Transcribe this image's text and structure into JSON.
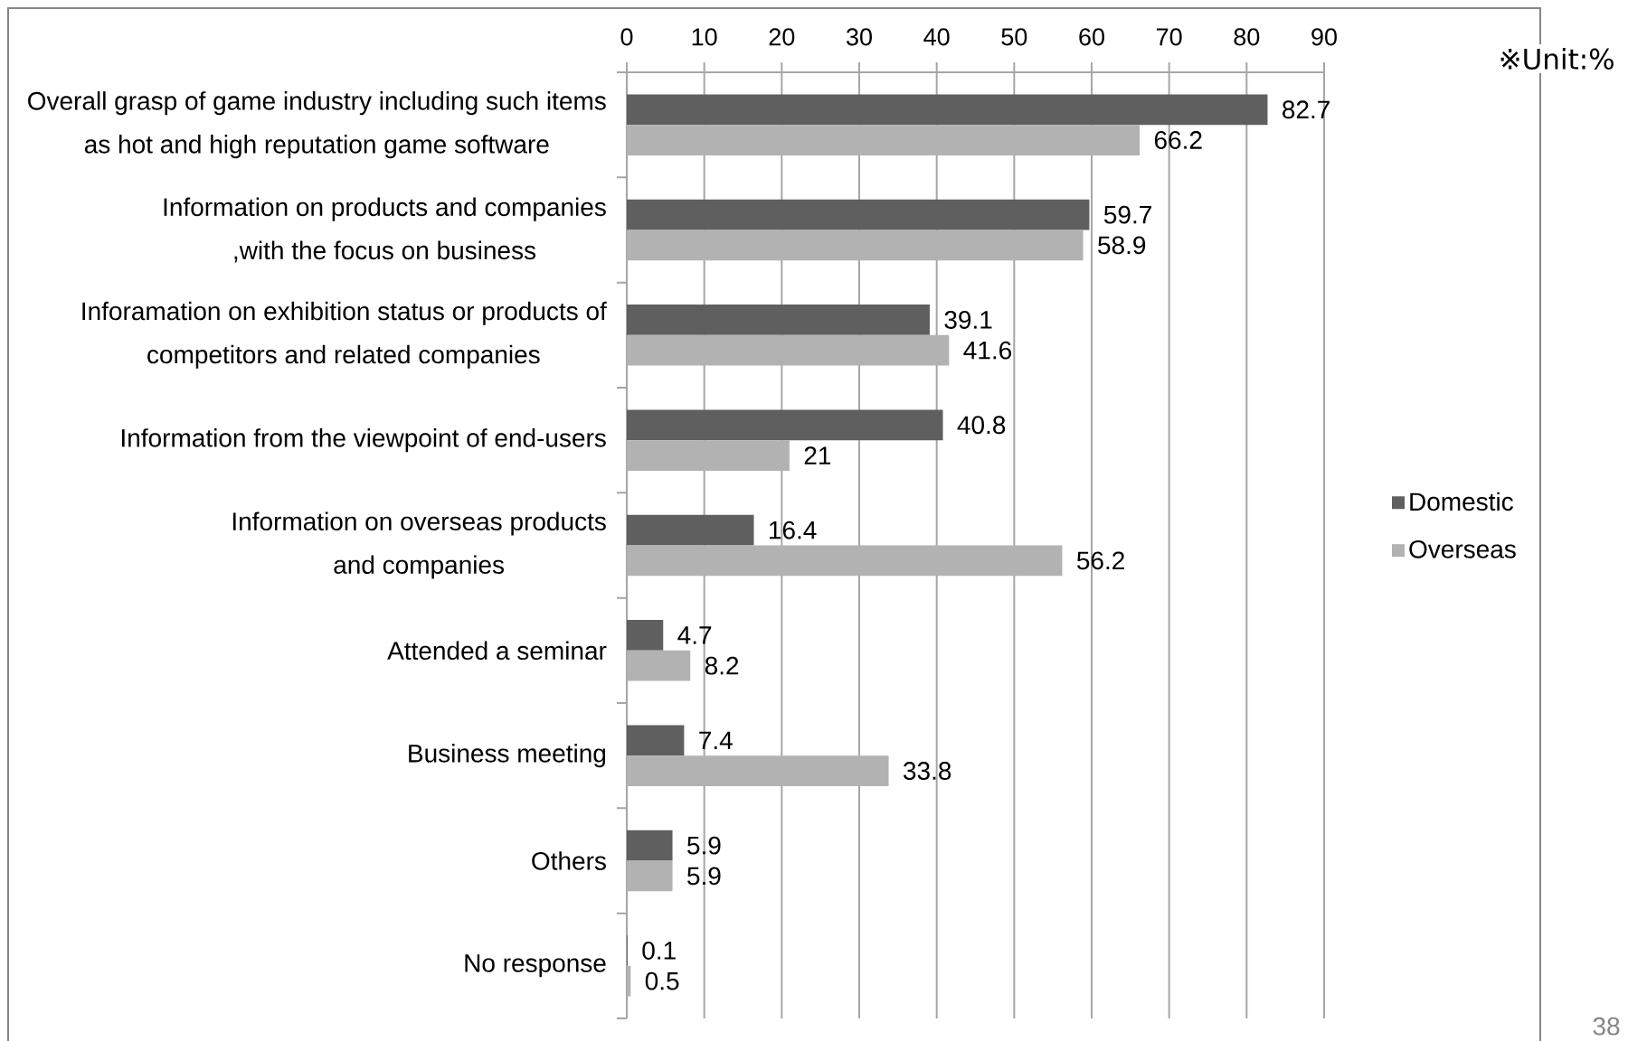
{
  "chart_data": {
    "type": "bar",
    "orientation": "horizontal",
    "categories": [
      "Overall grasp of game industry including such items\nas hot and high reputation game software",
      "Information on products and companies\n,with the focus on business",
      "Inforamation on exhibition status or products of\ncompetitors and related companies",
      "Information from the viewpoint of end-users",
      "Information on overseas products\nand companies",
      "Attended a seminar",
      "Business meeting",
      "Others",
      "No response"
    ],
    "series": [
      {
        "name": "Domestic",
        "color": "#5f5f5f",
        "values": [
          82.7,
          59.7,
          39.1,
          40.8,
          16.4,
          4.7,
          7.4,
          5.9,
          0.1
        ]
      },
      {
        "name": "Overseas",
        "color": "#b2b2b2",
        "values": [
          66.2,
          58.9,
          41.6,
          21,
          56.2,
          8.2,
          33.8,
          5.9,
          0.5
        ]
      }
    ],
    "xlim": [
      0,
      90
    ],
    "xticks": [
      0,
      10,
      20,
      30,
      40,
      50,
      60,
      70,
      80,
      90
    ],
    "grid": "x",
    "legend": "right",
    "data_labels": true,
    "annotations": [
      "※Unit:%",
      "38"
    ]
  }
}
